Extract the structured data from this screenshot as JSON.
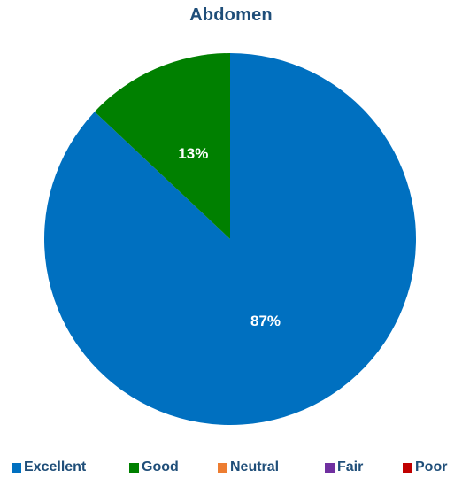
{
  "chart_data": {
    "type": "pie",
    "title": "Abdomen",
    "categories": [
      "Excellent",
      "Good",
      "Neutral",
      "Fair",
      "Poor"
    ],
    "values": [
      87,
      13,
      0,
      0,
      0
    ],
    "data_labels": [
      "87%",
      "13%",
      "",
      "",
      ""
    ],
    "colors": [
      "#0070c0",
      "#008000",
      "#ed7d31",
      "#7030a0",
      "#c00000"
    ],
    "legend_position": "bottom"
  }
}
